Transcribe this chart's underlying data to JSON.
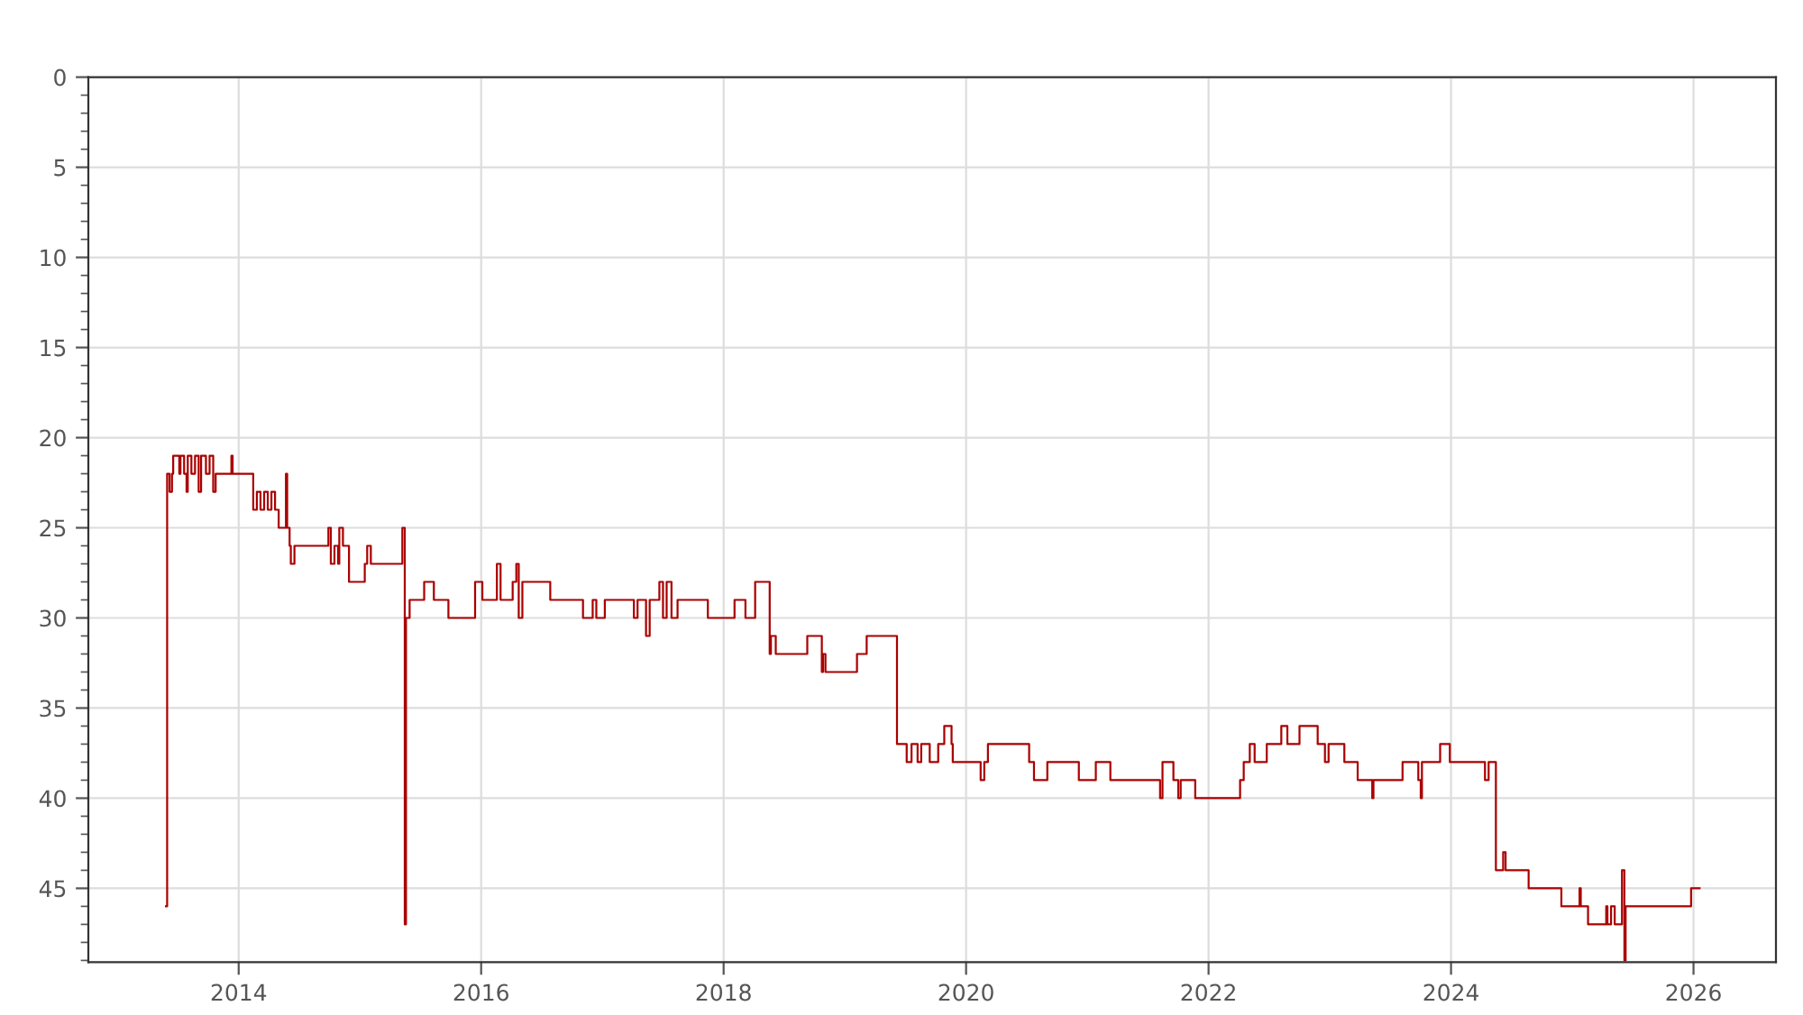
{
  "chart_data": {
    "type": "step",
    "x": [
      2013.4,
      2013.41,
      2013.43,
      2013.45,
      2013.46,
      2013.51,
      2013.52,
      2013.55,
      2013.57,
      2013.58,
      2013.61,
      2013.64,
      2013.67,
      2013.69,
      2013.73,
      2013.76,
      2013.79,
      2013.81,
      2013.82,
      2013.94,
      2013.95,
      2014.12,
      2014.15,
      2014.18,
      2014.21,
      2014.24,
      2014.27,
      2014.3,
      2014.33,
      2014.39,
      2014.4,
      2014.42,
      2014.43,
      2014.46,
      2014.74,
      2014.76,
      2014.79,
      2014.82,
      2014.83,
      2014.86,
      2014.91,
      2015.04,
      2015.06,
      2015.09,
      2015.35,
      2015.37,
      2015.38,
      2015.41,
      2015.53,
      2015.61,
      2015.73,
      2015.95,
      2016.01,
      2016.13,
      2016.16,
      2016.26,
      2016.29,
      2016.31,
      2016.34,
      2016.4,
      2016.57,
      2016.84,
      2016.92,
      2016.95,
      2017.02,
      2017.26,
      2017.29,
      2017.36,
      2017.39,
      2017.47,
      2017.5,
      2017.53,
      2017.57,
      2017.62,
      2017.87,
      2018.09,
      2018.18,
      2018.26,
      2018.38,
      2018.39,
      2018.43,
      2018.69,
      2018.81,
      2018.82,
      2018.84,
      2019.1,
      2019.18,
      2019.43,
      2019.51,
      2019.55,
      2019.6,
      2019.63,
      2019.7,
      2019.77,
      2019.82,
      2019.88,
      2019.89,
      2020.12,
      2020.15,
      2020.18,
      2020.52,
      2020.56,
      2020.67,
      2020.82,
      2020.93,
      2021.07,
      2021.19,
      2021.6,
      2021.62,
      2021.71,
      2021.75,
      2021.77,
      2021.89,
      2022.26,
      2022.29,
      2022.34,
      2022.38,
      2022.48,
      2022.6,
      2022.65,
      2022.75,
      2022.9,
      2022.96,
      2022.99,
      2023.12,
      2023.23,
      2023.35,
      2023.36,
      2023.6,
      2023.73,
      2023.75,
      2023.76,
      2023.91,
      2023.99,
      2024.28,
      2024.31,
      2024.37,
      2024.43,
      2024.45,
      2024.64,
      2024.91,
      2025.06,
      2025.07,
      2025.13,
      2025.28,
      2025.29,
      2025.32,
      2025.35,
      2025.41,
      2025.43,
      2025.44,
      2025.98,
      2026.05
    ],
    "series": [
      {
        "color": "#aa0000",
        "values": [
          46,
          22,
          23,
          22,
          21,
          22,
          21,
          22,
          23,
          21,
          22,
          21,
          23,
          21,
          22,
          21,
          23,
          22,
          22,
          21,
          22,
          24,
          23,
          24,
          23,
          24,
          23,
          24,
          25,
          22,
          25,
          26,
          27,
          26,
          25,
          27,
          26,
          27,
          25,
          26,
          28,
          27,
          26,
          27,
          25,
          47,
          30,
          29,
          28,
          29,
          30,
          28,
          29,
          27,
          29,
          28,
          27,
          30,
          28,
          28,
          29,
          30,
          29,
          30,
          29,
          30,
          29,
          31,
          29,
          28,
          30,
          28,
          30,
          29,
          30,
          29,
          30,
          28,
          32,
          31,
          32,
          31,
          33,
          32,
          33,
          32,
          31,
          37,
          38,
          37,
          38,
          37,
          38,
          37,
          36,
          37,
          38,
          39,
          38,
          37,
          38,
          39,
          38,
          38,
          39,
          38,
          39,
          40,
          38,
          39,
          40,
          39,
          40,
          39,
          38,
          37,
          38,
          37,
          36,
          37,
          36,
          37,
          38,
          37,
          38,
          39,
          40,
          39,
          38,
          39,
          40,
          38,
          37,
          38,
          39,
          38,
          44,
          43,
          44,
          45,
          46,
          45,
          46,
          47,
          46,
          47,
          46,
          47,
          44,
          49,
          46,
          45,
          45
        ]
      }
    ],
    "xlim": [
      2012.76,
      2026.68
    ],
    "xticks": [
      2014,
      2016,
      2018,
      2020,
      2022,
      2024,
      2026
    ],
    "ylim": [
      49.1,
      0
    ],
    "yticks": [
      0,
      {
        "value": 1,
        "label": null
      },
      {
        "value": 2,
        "label": null
      },
      {
        "value": 3,
        "label": null
      },
      {
        "value": 4,
        "label": null
      },
      5,
      {
        "value": 6,
        "label": null
      },
      {
        "value": 7,
        "label": null
      },
      {
        "value": 8,
        "label": null
      },
      {
        "value": 9,
        "label": null
      },
      10,
      {
        "value": 11,
        "label": null
      },
      {
        "value": 12,
        "label": null
      },
      {
        "value": 13,
        "label": null
      },
      {
        "value": 14,
        "label": null
      },
      15,
      {
        "value": 16,
        "label": null
      },
      {
        "value": 17,
        "label": null
      },
      {
        "value": 18,
        "label": null
      },
      {
        "value": 19,
        "label": null
      },
      20,
      {
        "value": 21,
        "label": null
      },
      {
        "value": 22,
        "label": null
      },
      {
        "value": 23,
        "label": null
      },
      {
        "value": 24,
        "label": null
      },
      25,
      {
        "value": 26,
        "label": null
      },
      {
        "value": 27,
        "label": null
      },
      {
        "value": 28,
        "label": null
      },
      {
        "value": 29,
        "label": null
      },
      30,
      {
        "value": 31,
        "label": null
      },
      {
        "value": 32,
        "label": null
      },
      {
        "value": 33,
        "label": null
      },
      {
        "value": 34,
        "label": null
      },
      35,
      {
        "value": 36,
        "label": null
      },
      {
        "value": 37,
        "label": null
      },
      {
        "value": 38,
        "label": null
      },
      {
        "value": 39,
        "label": null
      },
      40,
      {
        "value": 41,
        "label": null
      },
      {
        "value": 42,
        "label": null
      },
      {
        "value": 43,
        "label": null
      },
      {
        "value": 44,
        "label": null
      },
      45,
      {
        "value": 46,
        "label": null
      },
      {
        "value": 47,
        "label": null
      },
      {
        "value": 48,
        "label": null
      },
      {
        "value": 49,
        "label": null
      }
    ],
    "grid": true
  }
}
